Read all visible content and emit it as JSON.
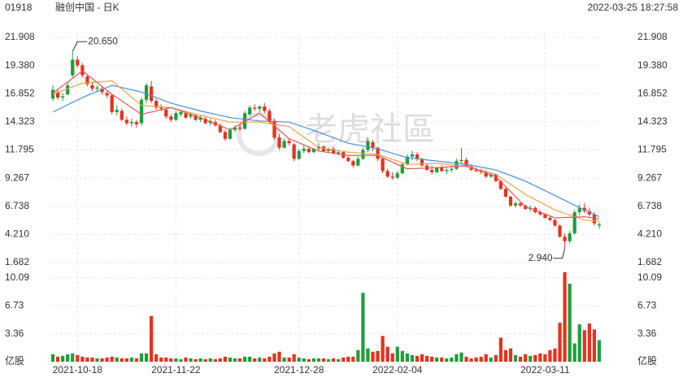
{
  "header": {
    "code": "01918",
    "name": "融创中国 - 日K",
    "time": "2022-03-25 18:27:58"
  },
  "watermark": "老虎社區",
  "chart_data": {
    "type": "candlestick",
    "up_color": "#1f9e3c",
    "down_color": "#e5321e",
    "xlim": [
      -0.5,
      111.5
    ],
    "xticks": [
      {
        "value": 5,
        "label": "2021-10-18"
      },
      {
        "value": 25,
        "label": "2021-11-22"
      },
      {
        "value": 50,
        "label": "2021-12-28"
      },
      {
        "value": 70,
        "label": "2022-02-04"
      },
      {
        "value": 100,
        "label": "2022-03-11"
      }
    ],
    "ylim": [
      1.682,
      21.908
    ],
    "yticks": [
      1.682,
      {
        "value": 4.21,
        "label": "4.210"
      },
      6.738,
      9.267,
      11.795,
      14.323,
      16.852,
      {
        "value": 19.38,
        "label": "19.380"
      },
      21.908
    ],
    "high_label": "20.650",
    "low_label": "2.940",
    "candles": [
      [
        16.4,
        17.6,
        16.2,
        17.2
      ],
      [
        17.0,
        17.2,
        16.3,
        16.5
      ],
      [
        16.5,
        16.9,
        16.2,
        16.6
      ],
      [
        16.8,
        17.9,
        16.7,
        17.6
      ],
      [
        18.5,
        20.65,
        18.3,
        19.9
      ],
      [
        19.9,
        20.2,
        19.2,
        19.4
      ],
      [
        19.4,
        19.6,
        18.3,
        18.5
      ],
      [
        18.4,
        18.6,
        17.5,
        17.7
      ],
      [
        17.6,
        17.9,
        17.1,
        17.3
      ],
      [
        17.3,
        17.6,
        17.0,
        17.4
      ],
      [
        17.3,
        17.5,
        16.8,
        17.0
      ],
      [
        16.9,
        17.1,
        16.5,
        16.7
      ],
      [
        16.7,
        16.8,
        15.0,
        15.2
      ],
      [
        15.2,
        15.8,
        14.9,
        15.4
      ],
      [
        15.3,
        15.5,
        14.4,
        14.5
      ],
      [
        14.5,
        14.8,
        14.0,
        14.2
      ],
      [
        14.2,
        14.6,
        13.9,
        14.3
      ],
      [
        14.3,
        14.5,
        13.8,
        14.1
      ],
      [
        14.2,
        16.5,
        14.0,
        16.3
      ],
      [
        16.3,
        17.8,
        16.0,
        17.6
      ],
      [
        17.5,
        18.0,
        16.0,
        16.2
      ],
      [
        16.2,
        16.4,
        15.4,
        15.6
      ],
      [
        15.6,
        15.9,
        15.3,
        15.5
      ],
      [
        15.4,
        15.6,
        14.6,
        14.8
      ],
      [
        14.8,
        15.0,
        14.3,
        14.5
      ],
      [
        14.5,
        15.3,
        14.4,
        15.1
      ],
      [
        15.0,
        15.4,
        14.8,
        15.2
      ],
      [
        15.1,
        15.3,
        14.6,
        14.7
      ],
      [
        14.8,
        15.2,
        14.6,
        15.0
      ],
      [
        14.9,
        15.0,
        14.4,
        14.5
      ],
      [
        14.5,
        14.9,
        14.3,
        14.7
      ],
      [
        14.6,
        14.8,
        14.1,
        14.2
      ],
      [
        14.2,
        14.6,
        14.0,
        14.4
      ],
      [
        14.3,
        14.5,
        13.9,
        14.0
      ],
      [
        14.0,
        14.2,
        13.3,
        13.4
      ],
      [
        13.4,
        13.6,
        12.6,
        12.8
      ],
      [
        12.8,
        13.8,
        12.7,
        13.6
      ],
      [
        13.6,
        14.0,
        13.4,
        13.8
      ],
      [
        13.8,
        14.1,
        13.5,
        13.7
      ],
      [
        13.7,
        15.3,
        13.6,
        15.1
      ],
      [
        15.0,
        15.8,
        14.9,
        15.6
      ],
      [
        15.6,
        15.9,
        15.3,
        15.5
      ],
      [
        15.5,
        15.8,
        15.2,
        15.7
      ],
      [
        15.7,
        16.0,
        15.1,
        15.3
      ],
      [
        15.3,
        15.5,
        14.2,
        14.4
      ],
      [
        14.4,
        14.6,
        12.7,
        12.9
      ],
      [
        12.9,
        13.2,
        11.8,
        12.0
      ],
      [
        12.0,
        12.8,
        11.9,
        12.6
      ],
      [
        12.6,
        12.8,
        12.2,
        12.4
      ],
      [
        12.3,
        12.4,
        10.8,
        11.0
      ],
      [
        11.0,
        11.9,
        10.9,
        11.7
      ],
      [
        11.7,
        12.2,
        11.5,
        11.9
      ],
      [
        11.9,
        12.1,
        11.5,
        11.6
      ],
      [
        11.6,
        12.0,
        11.5,
        11.9
      ],
      [
        11.9,
        12.4,
        11.7,
        12.1
      ],
      [
        12.1,
        12.2,
        11.6,
        11.7
      ],
      [
        11.7,
        12.0,
        11.5,
        11.9
      ],
      [
        11.9,
        12.1,
        11.4,
        11.5
      ],
      [
        11.5,
        11.8,
        11.3,
        11.6
      ],
      [
        11.6,
        11.7,
        11.0,
        11.1
      ],
      [
        11.1,
        11.3,
        10.7,
        10.8
      ],
      [
        10.8,
        10.9,
        10.2,
        10.4
      ],
      [
        10.4,
        11.2,
        10.3,
        11.0
      ],
      [
        11.0,
        12.0,
        10.9,
        11.8
      ],
      [
        11.8,
        12.9,
        11.6,
        12.6
      ],
      [
        12.5,
        12.7,
        11.7,
        12.0
      ],
      [
        12.0,
        12.1,
        10.8,
        11.0
      ],
      [
        11.0,
        11.1,
        9.7,
        9.9
      ],
      [
        9.9,
        10.1,
        9.3,
        9.4
      ],
      [
        9.4,
        9.8,
        9.1,
        9.3
      ],
      [
        9.3,
        9.9,
        9.2,
        9.7
      ],
      [
        9.7,
        10.7,
        9.6,
        10.5
      ],
      [
        10.5,
        11.4,
        10.4,
        11.2
      ],
      [
        11.2,
        11.7,
        10.9,
        11.4
      ],
      [
        11.4,
        11.6,
        10.8,
        11.0
      ],
      [
        11.0,
        11.1,
        10.3,
        10.4
      ],
      [
        10.4,
        10.6,
        9.9,
        10.0
      ],
      [
        10.0,
        10.4,
        9.6,
        9.8
      ],
      [
        9.8,
        10.3,
        9.7,
        10.2
      ],
      [
        10.2,
        10.4,
        9.8,
        9.9
      ],
      [
        9.9,
        10.2,
        9.6,
        10.0
      ],
      [
        10.0,
        10.3,
        9.8,
        10.1
      ],
      [
        10.1,
        11.0,
        10.0,
        10.8
      ],
      [
        10.8,
        12.0,
        10.6,
        10.9
      ],
      [
        10.9,
        11.1,
        10.2,
        10.3
      ],
      [
        10.3,
        10.5,
        9.9,
        10.0
      ],
      [
        10.0,
        10.2,
        9.8,
        9.9
      ],
      [
        9.9,
        10.1,
        9.6,
        9.8
      ],
      [
        9.8,
        10.0,
        9.3,
        9.4
      ],
      [
        9.4,
        9.8,
        9.3,
        9.6
      ],
      [
        9.6,
        9.7,
        8.9,
        9.0
      ],
      [
        9.0,
        9.1,
        8.2,
        8.3
      ],
      [
        8.3,
        8.4,
        7.5,
        7.6
      ],
      [
        7.6,
        7.7,
        6.7,
        6.8
      ],
      [
        6.8,
        7.2,
        6.6,
        7.0
      ],
      [
        7.0,
        7.1,
        6.7,
        6.8
      ],
      [
        6.8,
        6.9,
        6.4,
        6.5
      ],
      [
        6.5,
        6.8,
        6.3,
        6.6
      ],
      [
        6.6,
        6.7,
        6.1,
        6.2
      ],
      [
        6.2,
        6.4,
        5.9,
        6.0
      ],
      [
        6.0,
        6.1,
        5.6,
        5.7
      ],
      [
        5.7,
        5.9,
        5.4,
        5.5
      ],
      [
        5.5,
        5.6,
        4.9,
        5.0
      ],
      [
        5.0,
        5.1,
        3.9,
        4.0
      ],
      [
        4.0,
        4.3,
        2.94,
        3.6
      ],
      [
        3.6,
        4.5,
        3.4,
        4.3
      ],
      [
        4.3,
        6.4,
        4.2,
        6.2
      ],
      [
        6.2,
        6.9,
        5.9,
        6.6
      ],
      [
        6.6,
        7.0,
        6.1,
        6.3
      ],
      [
        6.3,
        6.6,
        5.8,
        6.0
      ],
      [
        6.0,
        6.2,
        5.0,
        5.2
      ],
      [
        5.0,
        5.3,
        4.7,
        5.1
      ]
    ],
    "lines": [
      {
        "color": "#4a90d9",
        "x": [
          0,
          6,
          12,
          18,
          24,
          30,
          36,
          42,
          48,
          54,
          60,
          66,
          72,
          78,
          84,
          90,
          96,
          102,
          108,
          111
        ],
        "values": [
          15.2,
          16.5,
          17.6,
          17.0,
          16.0,
          15.3,
          14.7,
          14.4,
          14.3,
          13.4,
          12.4,
          11.9,
          11.1,
          10.8,
          10.5,
          10.0,
          9.0,
          7.7,
          6.4,
          5.8
        ]
      },
      {
        "color": "#f0a050",
        "x": [
          0,
          6,
          12,
          18,
          24,
          30,
          36,
          42,
          48,
          54,
          60,
          66,
          72,
          78,
          84,
          90,
          96,
          102,
          108,
          111
        ],
        "values": [
          16.8,
          17.8,
          18.0,
          15.8,
          15.6,
          14.9,
          14.3,
          14.3,
          13.9,
          12.0,
          11.6,
          11.4,
          10.5,
          10.6,
          10.3,
          9.6,
          7.8,
          6.4,
          5.5,
          5.4
        ]
      },
      {
        "color": "#e25a5a",
        "x": [
          0,
          6,
          12,
          18,
          24,
          30,
          36,
          42,
          48,
          54,
          60,
          66,
          72,
          78,
          84,
          90,
          96,
          102,
          108,
          111
        ],
        "values": [
          16.9,
          18.9,
          16.8,
          15.0,
          15.6,
          14.7,
          13.6,
          15.1,
          12.8,
          11.7,
          11.3,
          11.3,
          10.1,
          10.2,
          10.4,
          9.4,
          6.7,
          5.7,
          5.8,
          5.6
        ]
      }
    ],
    "volume": {
      "ylim": [
        0,
        10.78
      ],
      "yticks": [
        {
          "value": 0,
          "label": "亿股"
        },
        3.36,
        6.73,
        10.09
      ],
      "values": [
        0.9,
        0.6,
        0.7,
        0.9,
        1.0,
        0.8,
        0.6,
        0.5,
        0.5,
        0.4,
        0.4,
        0.5,
        0.6,
        0.5,
        0.4,
        0.4,
        0.5,
        0.4,
        1.0,
        1.0,
        5.5,
        0.9,
        0.5,
        0.5,
        0.4,
        0.4,
        0.3,
        0.5,
        0.4,
        0.3,
        0.4,
        0.3,
        0.4,
        0.3,
        0.4,
        0.6,
        0.5,
        0.4,
        0.4,
        0.6,
        0.6,
        0.4,
        0.5,
        0.4,
        0.6,
        1.0,
        1.2,
        0.5,
        0.5,
        0.9,
        0.5,
        0.4,
        0.3,
        0.4,
        0.4,
        0.4,
        0.3,
        0.4,
        0.3,
        0.5,
        0.6,
        0.6,
        1.4,
        8.3,
        1.6,
        1.2,
        1.3,
        3.1,
        1.8,
        1.0,
        1.8,
        1.3,
        1.0,
        0.8,
        0.7,
        0.9,
        0.7,
        0.6,
        0.5,
        0.5,
        0.4,
        0.5,
        0.9,
        1.1,
        0.6,
        0.4,
        0.5,
        0.6,
        0.9,
        0.5,
        0.8,
        2.9,
        1.4,
        1.6,
        0.8,
        0.6,
        0.9,
        0.7,
        0.8,
        1.0,
        0.9,
        1.4,
        1.6,
        4.7,
        10.8,
        9.4,
        2.2,
        4.5,
        3.8,
        4.6,
        3.9,
        2.6
      ]
    }
  }
}
